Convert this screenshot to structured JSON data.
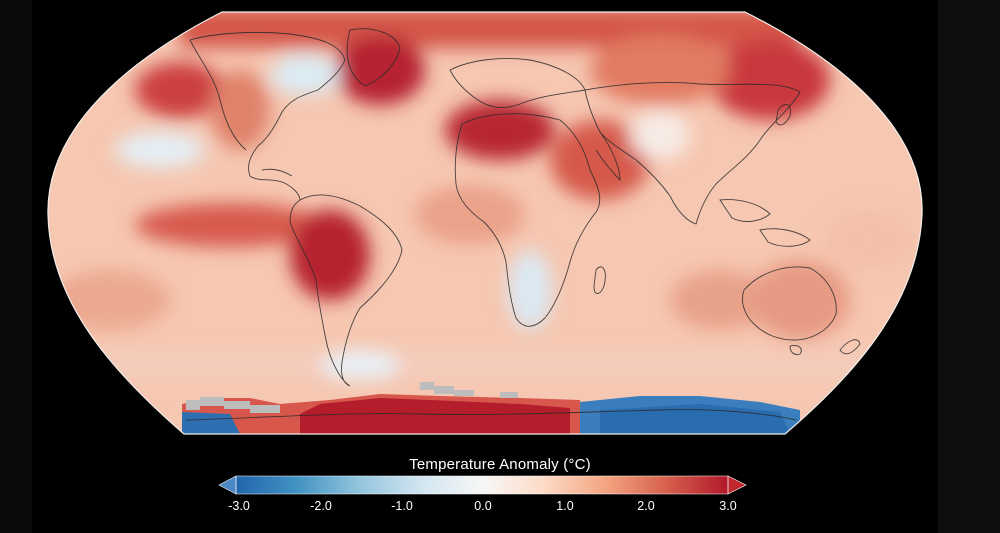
{
  "legend": {
    "title": "Temperature Anomaly (°C)",
    "ticks": [
      "-3.0",
      "-2.0",
      "-1.0",
      "0.0",
      "1.0",
      "2.0",
      "3.0"
    ],
    "min": -3.0,
    "max": 3.0,
    "colors": [
      "#2166ac",
      "#4393c3",
      "#92c5de",
      "#d1e5f0",
      "#f7f7f7",
      "#fddbc7",
      "#f4a582",
      "#d6604d",
      "#b2182b"
    ]
  },
  "map": {
    "projection": "robinson",
    "no_data_color": "#bdbdbd",
    "coastline_color": "#2a2a2a"
  }
}
